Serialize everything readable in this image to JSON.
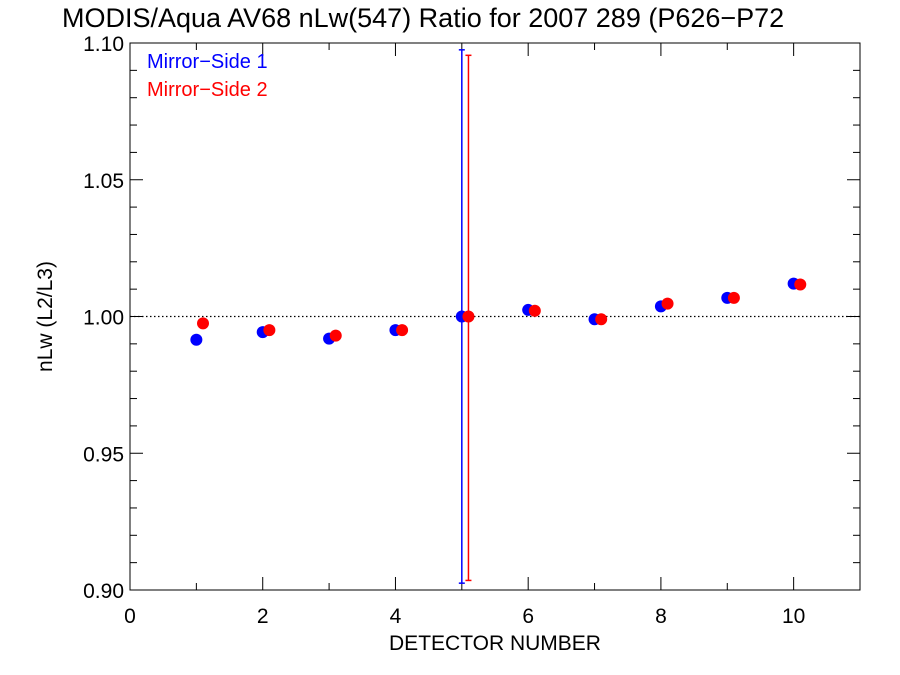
{
  "chart_data": {
    "type": "scatter",
    "title": "MODIS/Aqua AV68 nLw(547) Ratio for 2007 289 (P626−P72",
    "xlabel": "DETECTOR NUMBER",
    "ylabel": "nLw (L2/L3)",
    "xlim": [
      0,
      11
    ],
    "ylim": [
      0.9,
      1.1
    ],
    "x_ticks": [
      0,
      2,
      4,
      6,
      8,
      10
    ],
    "x_tick_labels": [
      "0",
      "2",
      "4",
      "6",
      "8",
      "10"
    ],
    "y_ticks": [
      0.9,
      0.95,
      1.0,
      1.05,
      1.1
    ],
    "y_tick_labels": [
      "0.90",
      "0.95",
      "1.00",
      "1.05",
      "1.10"
    ],
    "reference_line": {
      "y": 1.0,
      "style": "dotted"
    },
    "legend_position": "top-left",
    "series": [
      {
        "name": "Mirror−Side 1",
        "color": "#0000ff",
        "x": [
          1,
          2,
          3,
          4,
          5,
          6,
          7,
          8,
          9,
          10
        ],
        "y": [
          0.9915,
          0.9943,
          0.9919,
          0.995,
          1.0,
          1.0024,
          0.999,
          1.0037,
          1.0068,
          1.012
        ],
        "error_bars": [
          {
            "x": 5,
            "low": 0.9025,
            "high": 1.0975
          }
        ]
      },
      {
        "name": "Mirror−Side 2",
        "color": "#ff0000",
        "x": [
          1.1,
          2.1,
          3.1,
          4.1,
          5.1,
          6.1,
          7.1,
          8.1,
          9.1,
          10.1
        ],
        "y": [
          0.9975,
          0.995,
          0.993,
          0.995,
          1.0,
          1.0021,
          0.999,
          1.0047,
          1.0068,
          1.0117
        ],
        "error_bars": [
          {
            "x": 5.1,
            "low": 0.9035,
            "high": 1.0955
          }
        ]
      }
    ]
  }
}
